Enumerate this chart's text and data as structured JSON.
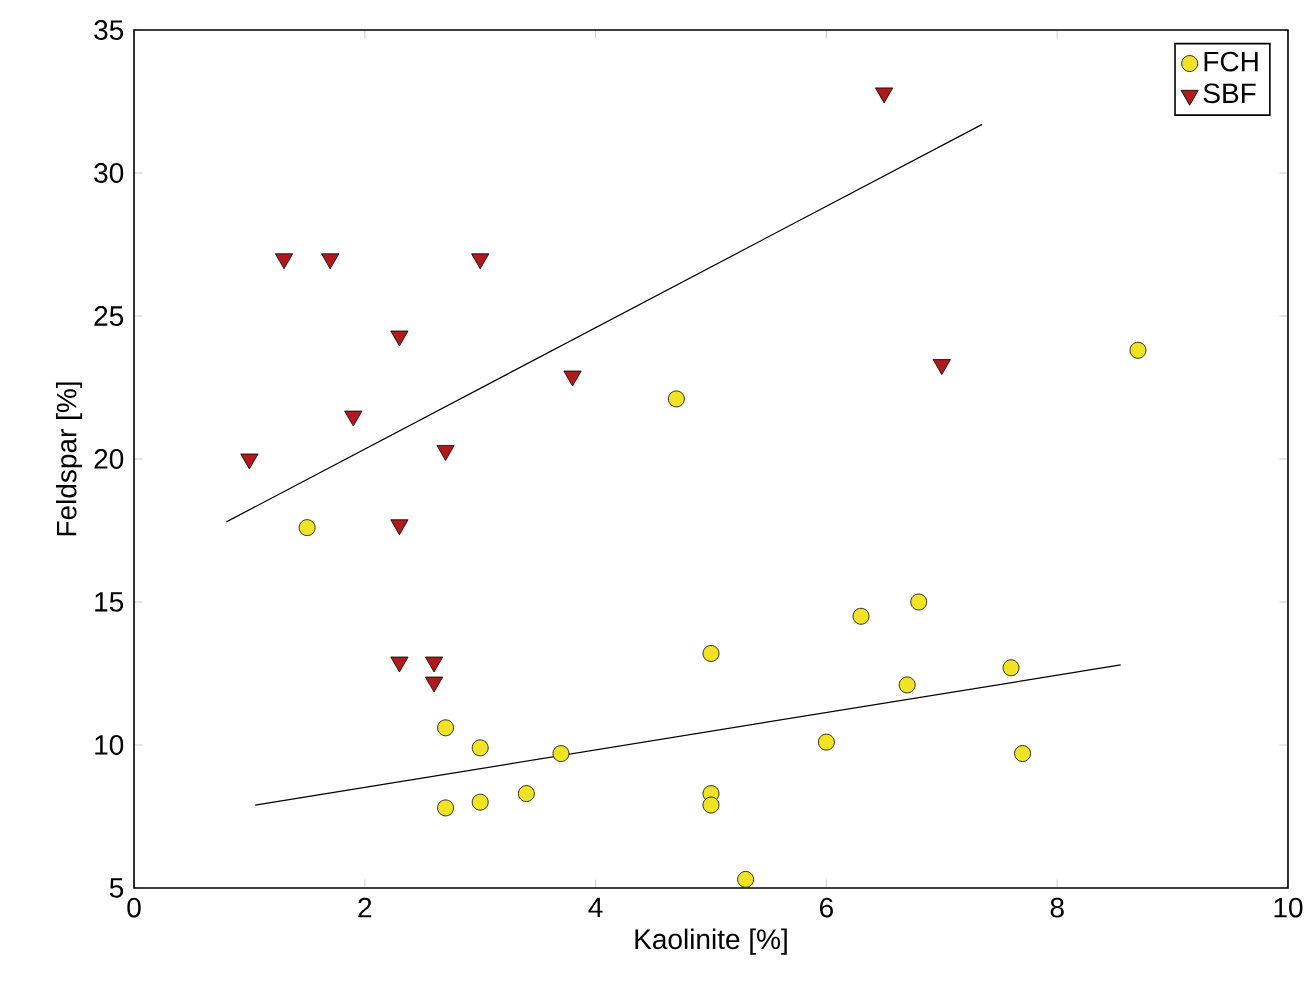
{
  "chart_data": {
    "type": "scatter",
    "xlabel": "Kaolinite [%]",
    "ylabel": "Feldspar [%]",
    "xlim": [
      0,
      10
    ],
    "ylim": [
      5,
      35
    ],
    "xticks": [
      0,
      2,
      4,
      6,
      8,
      10
    ],
    "yticks": [
      5,
      10,
      15,
      20,
      25,
      30,
      35
    ],
    "grid": false,
    "legend": "top right",
    "series": [
      {
        "name": "FCH",
        "color": "#f0e224",
        "marker": "circle",
        "x": [
          1.5,
          2.7,
          2.7,
          3.0,
          3.0,
          3.4,
          3.7,
          4.7,
          5.0,
          5.0,
          5.0,
          5.3,
          6.0,
          6.3,
          6.8,
          6.7,
          7.6,
          7.7,
          8.7
        ],
        "values": [
          17.6,
          10.6,
          7.8,
          9.9,
          8.0,
          8.3,
          9.7,
          22.1,
          13.2,
          8.3,
          7.9,
          5.3,
          10.1,
          14.5,
          15.0,
          12.1,
          12.7,
          9.7,
          23.8
        ]
      },
      {
        "name": "SBF",
        "color": "#b01a1a",
        "marker": "triangle",
        "x": [
          1.3,
          1.7,
          3.0,
          2.3,
          1.9,
          1.0,
          2.7,
          3.8,
          2.3,
          2.3,
          2.6,
          2.6,
          6.5,
          7.0
        ],
        "values": [
          27.0,
          27.0,
          27.0,
          24.3,
          21.5,
          20.0,
          20.3,
          22.9,
          17.7,
          12.9,
          12.9,
          12.2,
          32.8,
          23.3
        ]
      },
      {
        "type": "line",
        "color": "#000000",
        "marker": "none",
        "line_style": "solid",
        "x": [
          1.05,
          8.55
        ],
        "values": [
          7.9,
          12.8
        ]
      },
      {
        "type": "line",
        "color": "#000000",
        "marker": "none",
        "line_style": "solid",
        "x": [
          0.8,
          7.35
        ],
        "values": [
          17.8,
          31.7
        ]
      }
    ]
  }
}
